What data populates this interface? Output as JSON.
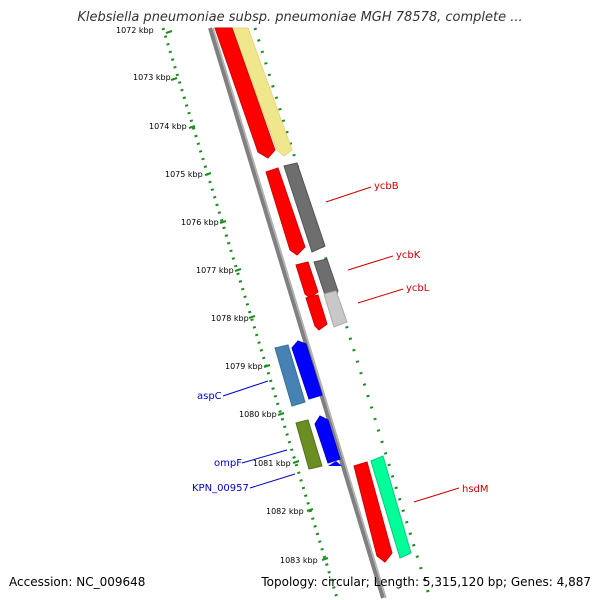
{
  "title": "Klebsiella pneumoniae subsp. pneumoniae MGH 78578, complete ...",
  "footer": {
    "accession": "Accession: NC_009648",
    "summary": "Topology: circular; Length: 5,315,120 bp; Genes: 4,887"
  },
  "colors": {
    "axis_dots": "#1e8c1e",
    "backbone": "#808080",
    "red": "#ff0000",
    "blue": "#0000ff",
    "steel": "#4682b4",
    "olive": "#6b8e23",
    "gray_dark": "#6e6e6e",
    "gray_light": "#c8c8c8",
    "khaki": "#f0e68c",
    "mint": "#00ff99",
    "label_red": "#cc0000",
    "label_blue": "#0000cc"
  },
  "scale": {
    "ticks": [
      "1072 kbp",
      "1073 kbp",
      "1074 kbp",
      "1075 kbp",
      "1076 kbp",
      "1077 kbp",
      "1078 kbp",
      "1079 kbp",
      "1080 kbp",
      "1081 kbp",
      "1082 kbp",
      "1083 kbp"
    ]
  },
  "genes": [
    {
      "label": "ycbB",
      "side": "right"
    },
    {
      "label": "ycbK",
      "side": "right"
    },
    {
      "label": "ycbL",
      "side": "right"
    },
    {
      "label": "aspC",
      "side": "left"
    },
    {
      "label": "ompF",
      "side": "left"
    },
    {
      "label": "KPN_00957",
      "side": "left"
    },
    {
      "label": "hsdM",
      "side": "right"
    }
  ]
}
